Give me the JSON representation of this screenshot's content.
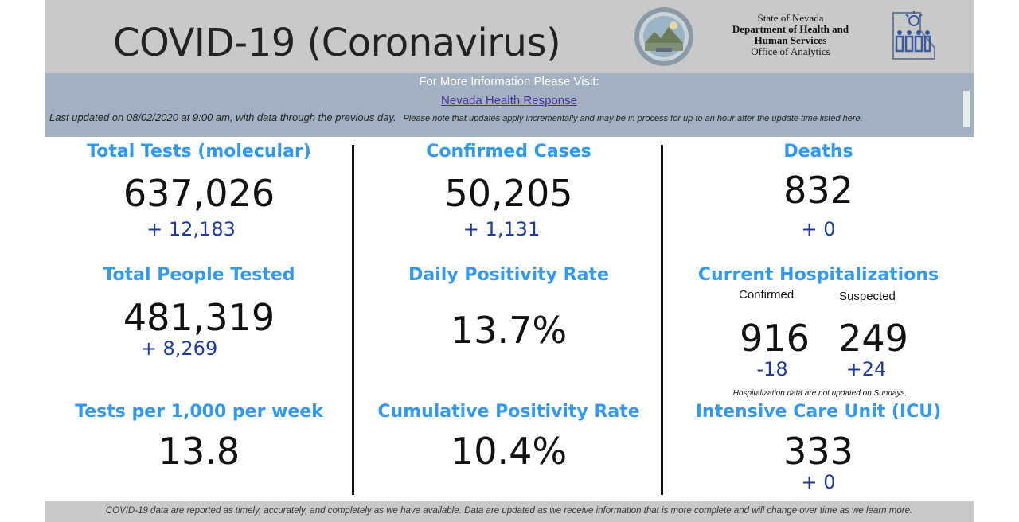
{
  "header": {
    "title": "COVID-19 (Coronavirus)",
    "agency_line1": "State of Nevada",
    "agency_line2": "Department of Health and",
    "agency_line3": "Human Services",
    "agency_line4": "Office of Analytics",
    "seal_icon": "nevada-state-seal-icon",
    "dhhs_logo_icon": "dhhs-logo-icon"
  },
  "info": {
    "visit_text": "For More Information Please Visit:",
    "link_text": "Nevada Health Response",
    "updated_text": "Last updated on 08/02/2020 at 9:00 am, with data through the previous day.",
    "note_text": "Please note that updates apply incrementally and may be in process for up to an hour after the update time listed here."
  },
  "stats": {
    "total_tests": {
      "label": "Total Tests (molecular)",
      "value": "637,026",
      "delta": "+ 12,183"
    },
    "confirmed_cases": {
      "label": "Confirmed Cases",
      "value": "50,205",
      "delta": "+ 1,131"
    },
    "deaths": {
      "label": "Deaths",
      "value": "832",
      "delta": "+ 0"
    },
    "people_tested": {
      "label": "Total People Tested",
      "value": "481,319",
      "delta": "+  8,269"
    },
    "daily_positivity": {
      "label": "Daily Positivity Rate",
      "value": "13.7%"
    },
    "hospitalizations": {
      "label": "Current Hospitalizations",
      "confirmed_label": "Confirmed",
      "suspected_label": "Suspected",
      "confirmed_value": "916",
      "suspected_value": "249",
      "confirmed_delta": "-18",
      "suspected_delta": "+24",
      "note": "Hospitalization data are not updated on Sundays."
    },
    "tests_per_1000": {
      "label": "Tests per 1,000 per week",
      "value": "13.8"
    },
    "cumulative_positivity": {
      "label": "Cumulative Positivity Rate",
      "value": "10.4%"
    },
    "icu": {
      "label": "Intensive Care Unit (ICU)",
      "value": "333",
      "delta": "+ 0"
    }
  },
  "footer": {
    "text": "COVID-19 data are reported as timely, accurately, and completely as we have available.  Data are updated as we receive information that is more complete and will change over time as we learn more."
  },
  "colors": {
    "label_blue": "#3399ee",
    "delta_blue": "#1f3a9a",
    "header_gray": "#c9c9c9",
    "infobar_blue": "#a2b1c2",
    "link_purple": "#4a2ea0"
  }
}
